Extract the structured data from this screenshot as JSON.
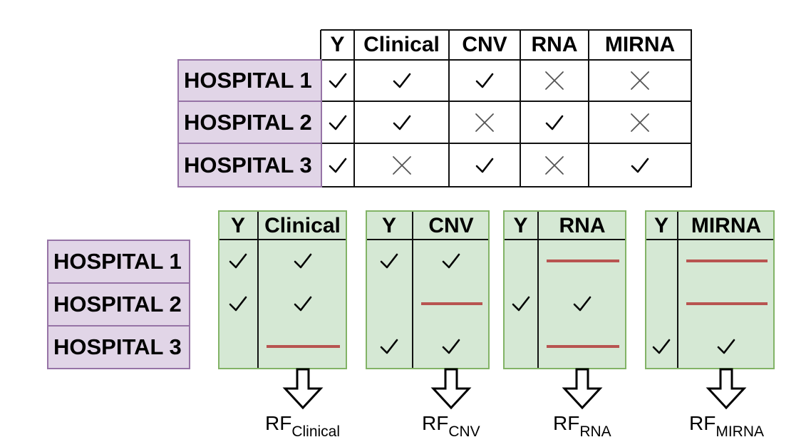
{
  "columns": [
    "Y",
    "Clinical",
    "CNV",
    "RNA",
    "MIRNA"
  ],
  "hospitals": [
    "HOSPITAL 1",
    "HOSPITAL 2",
    "HOSPITAL 3"
  ],
  "availability": [
    [
      "check",
      "check",
      "check",
      "cross",
      "cross"
    ],
    [
      "check",
      "check",
      "cross",
      "check",
      "cross"
    ],
    [
      "check",
      "cross",
      "check",
      "cross",
      "check"
    ]
  ],
  "panels": [
    {
      "feature": "Clinical",
      "rows": [
        [
          "check",
          "check"
        ],
        [
          "check",
          "check"
        ],
        [
          "none",
          "missing"
        ]
      ],
      "model_base": "RF",
      "model_sub": "Clinical"
    },
    {
      "feature": "CNV",
      "rows": [
        [
          "check",
          "check"
        ],
        [
          "none",
          "missing"
        ],
        [
          "check",
          "check"
        ]
      ],
      "model_base": "RF",
      "model_sub": "CNV"
    },
    {
      "feature": "RNA",
      "rows": [
        [
          "none",
          "missing"
        ],
        [
          "check",
          "check"
        ],
        [
          "none",
          "missing"
        ]
      ],
      "model_base": "RF",
      "model_sub": "RNA"
    },
    {
      "feature": "MIRNA",
      "rows": [
        [
          "none",
          "missing"
        ],
        [
          "none",
          "missing"
        ],
        [
          "check",
          "check"
        ]
      ],
      "model_base": "RF",
      "model_sub": "MIRNA"
    }
  ],
  "colors": {
    "hospital_fill": "#e1d5e7",
    "hospital_border": "#9673a6",
    "panel_fill": "#d5e8d4",
    "panel_border": "#82b366",
    "missing_line": "#b85450"
  },
  "icons": {
    "check": "check-icon",
    "cross": "cross-icon",
    "arrow": "down-arrow-icon"
  }
}
